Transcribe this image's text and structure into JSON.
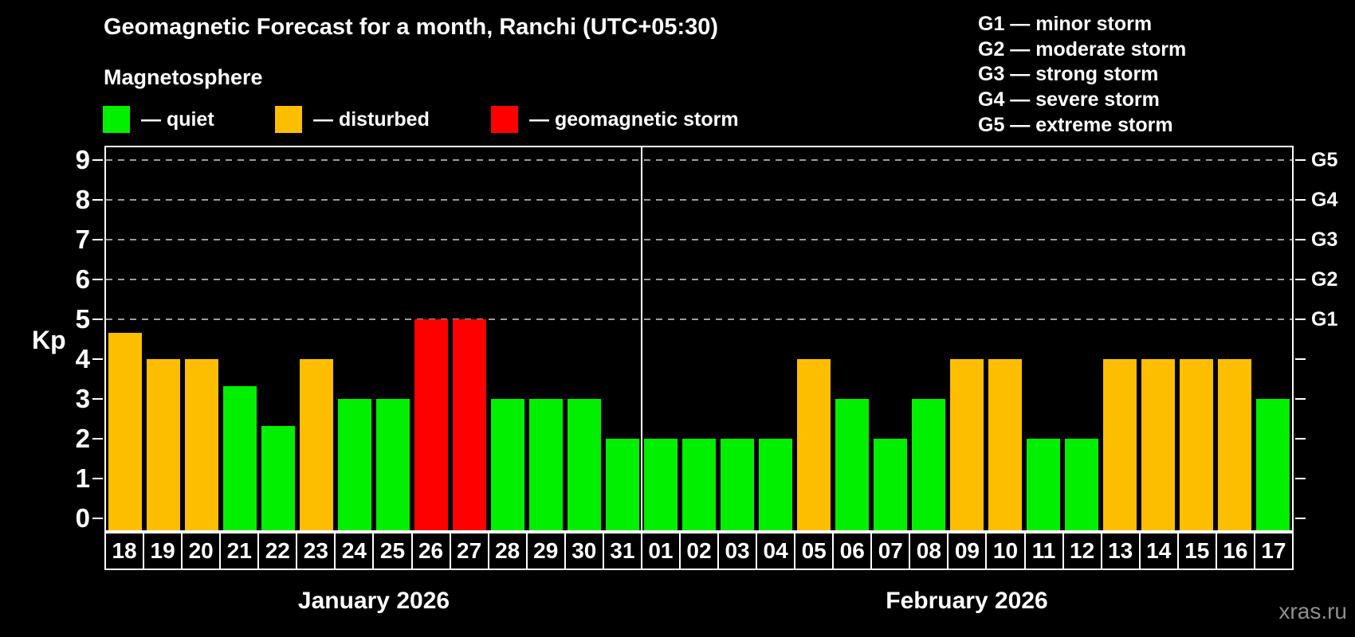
{
  "header": {
    "title": "Geomagnetic Forecast for a month, Ranchi (UTC+05:30)",
    "subtitle": "Magnetosphere",
    "watermark": "xras.ru"
  },
  "legend": {
    "items": [
      {
        "key": "quiet",
        "label": "— quiet",
        "color": "#00f000"
      },
      {
        "key": "disturbed",
        "label": "— disturbed",
        "color": "#fdbe00"
      },
      {
        "key": "storm",
        "label": "— geomagnetic storm",
        "color": "#ff0000"
      }
    ]
  },
  "g_scale_legend": {
    "items": [
      "G1 — minor storm",
      "G2 — moderate storm",
      "G3 — strong storm",
      "G4 — severe storm",
      "G5 — extreme storm"
    ]
  },
  "chart_data": {
    "type": "bar",
    "title": "Geomagnetic Forecast for a month, Ranchi (UTC+05:30)",
    "ylabel": "Kp",
    "ylim": [
      0,
      9.4
    ],
    "yticks": [
      0,
      1,
      2,
      3,
      4,
      5,
      6,
      7,
      8,
      9
    ],
    "gridlines_kp": [
      5,
      6,
      7,
      8,
      9
    ],
    "grid": "dashed horizontal lines only at G1–G5 levels (Kp 5–9)",
    "legend_position": "top-left",
    "right_axis_labels": [
      {
        "kp": 5,
        "label": "G1"
      },
      {
        "kp": 6,
        "label": "G2"
      },
      {
        "kp": 7,
        "label": "G3"
      },
      {
        "kp": 8,
        "label": "G4"
      },
      {
        "kp": 9,
        "label": "G5"
      }
    ],
    "status_colors": {
      "quiet": "#00f000",
      "disturbed": "#fdbe00",
      "storm": "#ff0000"
    },
    "categories": [
      "18",
      "19",
      "20",
      "21",
      "22",
      "23",
      "24",
      "25",
      "26",
      "27",
      "28",
      "29",
      "30",
      "31",
      "01",
      "02",
      "03",
      "04",
      "05",
      "06",
      "07",
      "08",
      "09",
      "10",
      "11",
      "12",
      "13",
      "14",
      "15",
      "16",
      "17"
    ],
    "values": [
      4.67,
      4,
      4,
      3.33,
      2.33,
      4,
      3,
      3,
      5,
      5,
      3,
      3,
      3,
      2,
      2,
      2,
      2,
      2,
      4,
      3,
      2,
      3,
      4,
      4,
      2,
      2,
      4,
      4,
      4,
      4,
      3
    ],
    "bars": [
      {
        "day": "18",
        "kp": 4.67,
        "status": "disturbed"
      },
      {
        "day": "19",
        "kp": 4,
        "status": "disturbed"
      },
      {
        "day": "20",
        "kp": 4,
        "status": "disturbed"
      },
      {
        "day": "21",
        "kp": 3.33,
        "status": "quiet"
      },
      {
        "day": "22",
        "kp": 2.33,
        "status": "quiet"
      },
      {
        "day": "23",
        "kp": 4,
        "status": "disturbed"
      },
      {
        "day": "24",
        "kp": 3,
        "status": "quiet"
      },
      {
        "day": "25",
        "kp": 3,
        "status": "quiet"
      },
      {
        "day": "26",
        "kp": 5,
        "status": "storm"
      },
      {
        "day": "27",
        "kp": 5,
        "status": "storm"
      },
      {
        "day": "28",
        "kp": 3,
        "status": "quiet"
      },
      {
        "day": "29",
        "kp": 3,
        "status": "quiet"
      },
      {
        "day": "30",
        "kp": 3,
        "status": "quiet"
      },
      {
        "day": "31",
        "kp": 2,
        "status": "quiet"
      },
      {
        "day": "01",
        "kp": 2,
        "status": "quiet"
      },
      {
        "day": "02",
        "kp": 2,
        "status": "quiet"
      },
      {
        "day": "03",
        "kp": 2,
        "status": "quiet"
      },
      {
        "day": "04",
        "kp": 2,
        "status": "quiet"
      },
      {
        "day": "05",
        "kp": 4,
        "status": "disturbed"
      },
      {
        "day": "06",
        "kp": 3,
        "status": "quiet"
      },
      {
        "day": "07",
        "kp": 2,
        "status": "quiet"
      },
      {
        "day": "08",
        "kp": 3,
        "status": "quiet"
      },
      {
        "day": "09",
        "kp": 4,
        "status": "disturbed"
      },
      {
        "day": "10",
        "kp": 4,
        "status": "disturbed"
      },
      {
        "day": "11",
        "kp": 2,
        "status": "quiet"
      },
      {
        "day": "12",
        "kp": 2,
        "status": "quiet"
      },
      {
        "day": "13",
        "kp": 4,
        "status": "disturbed"
      },
      {
        "day": "14",
        "kp": 4,
        "status": "disturbed"
      },
      {
        "day": "15",
        "kp": 4,
        "status": "disturbed"
      },
      {
        "day": "16",
        "kp": 4,
        "status": "disturbed"
      },
      {
        "day": "17",
        "kp": 3,
        "status": "quiet"
      }
    ],
    "months": [
      {
        "label": "January 2026",
        "days": 14
      },
      {
        "label": "February 2026",
        "days": 17
      }
    ]
  }
}
